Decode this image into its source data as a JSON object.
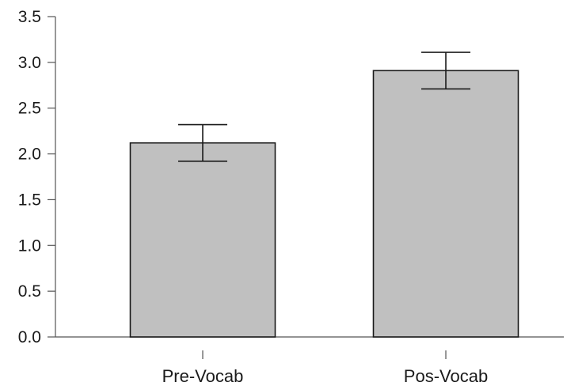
{
  "chart_data": {
    "type": "bar",
    "categories": [
      "Pre-Vocab",
      "Pos-Vocab"
    ],
    "values": [
      2.12,
      2.91
    ],
    "error_bars": [
      {
        "lower": 1.92,
        "upper": 2.32
      },
      {
        "lower": 2.71,
        "upper": 3.11
      }
    ],
    "ylim": [
      0,
      3.5
    ],
    "yticks": [
      "0.0",
      "0.5",
      "1.0",
      "1.5",
      "2.0",
      "2.5",
      "3.0",
      "3.5"
    ],
    "title": "",
    "xlabel": "",
    "ylabel": "",
    "grid": false,
    "bar_color": "#c0c0c0",
    "edge_color": "#1a1a1a"
  }
}
